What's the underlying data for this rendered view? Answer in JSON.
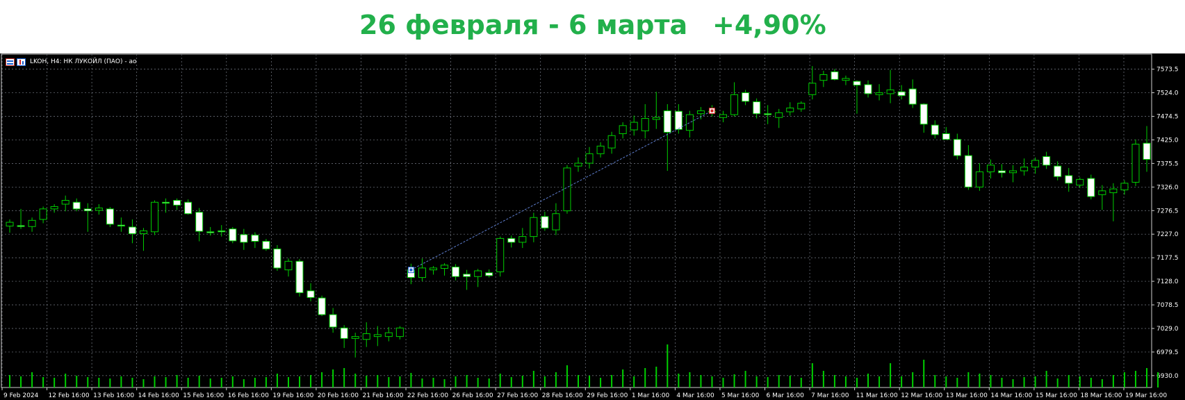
{
  "banner": {
    "period": "26 февраля - 6 марта",
    "change": "+4,90%"
  },
  "header": {
    "symbol_text": "LKOH, H4:  НК ЛУКОЙЛ (ПАО) - ao"
  },
  "colors": {
    "banner_text": "#22b04b",
    "background": "#000000",
    "grid": "#7a7f8a",
    "bull_stroke": "#00d000",
    "bull_fill": "#000000",
    "bear_fill": "#ffffff",
    "volume": "#00d000",
    "trendline": "#5f7fd0"
  },
  "chart_data": {
    "type": "candlestick",
    "title": "",
    "xlabel": "",
    "ylabel": "",
    "grid": true,
    "ylim": [
      6905,
      7605
    ],
    "y_ticks": [
      "7573.5",
      "7524.0",
      "7474.5",
      "7425.0",
      "7375.5",
      "7326.0",
      "7276.5",
      "7227.0",
      "7177.5",
      "7128.0",
      "7078.5",
      "7029.0",
      "6979.5",
      "6930.0"
    ],
    "x_ticks": [
      "9 Feb 2024",
      "12 Feb 16:00",
      "13 Feb 16:00",
      "14 Feb 16:00",
      "15 Feb 16:00",
      "16 Feb 16:00",
      "19 Feb 16:00",
      "20 Feb 16:00",
      "21 Feb 16:00",
      "22 Feb 16:00",
      "26 Feb 16:00",
      "27 Feb 16:00",
      "28 Feb 16:00",
      "29 Feb 16:00",
      "1 Mar 16:00",
      "4 Mar 16:00",
      "5 Mar 16:00",
      "6 Mar 16:00",
      "7 Mar 16:00",
      "11 Mar 16:00",
      "12 Mar 16:00",
      "13 Mar 16:00",
      "14 Mar 16:00",
      "15 Mar 16:00",
      "18 Mar 16:00",
      "19 Mar 16:00"
    ],
    "candles": [
      {
        "o": 7244,
        "h": 7258,
        "l": 7230,
        "c": 7252
      },
      {
        "o": 7245,
        "h": 7280,
        "l": 7238,
        "c": 7243
      },
      {
        "o": 7243,
        "h": 7262,
        "l": 7232,
        "c": 7256
      },
      {
        "o": 7258,
        "h": 7285,
        "l": 7250,
        "c": 7280
      },
      {
        "o": 7280,
        "h": 7290,
        "l": 7272,
        "c": 7285
      },
      {
        "o": 7290,
        "h": 7308,
        "l": 7275,
        "c": 7298
      },
      {
        "o": 7294,
        "h": 7302,
        "l": 7275,
        "c": 7280
      },
      {
        "o": 7280,
        "h": 7292,
        "l": 7232,
        "c": 7276
      },
      {
        "o": 7277,
        "h": 7290,
        "l": 7268,
        "c": 7282
      },
      {
        "o": 7280,
        "h": 7284,
        "l": 7242,
        "c": 7248
      },
      {
        "o": 7246,
        "h": 7262,
        "l": 7232,
        "c": 7244
      },
      {
        "o": 7242,
        "h": 7258,
        "l": 7208,
        "c": 7228
      },
      {
        "o": 7228,
        "h": 7240,
        "l": 7192,
        "c": 7234
      },
      {
        "o": 7232,
        "h": 7298,
        "l": 7225,
        "c": 7294
      },
      {
        "o": 7294,
        "h": 7302,
        "l": 7272,
        "c": 7292
      },
      {
        "o": 7298,
        "h": 7302,
        "l": 7278,
        "c": 7288
      },
      {
        "o": 7294,
        "h": 7300,
        "l": 7268,
        "c": 7270
      },
      {
        "o": 7273,
        "h": 7282,
        "l": 7212,
        "c": 7233
      },
      {
        "o": 7232,
        "h": 7242,
        "l": 7224,
        "c": 7230
      },
      {
        "o": 7234,
        "h": 7246,
        "l": 7222,
        "c": 7232
      },
      {
        "o": 7238,
        "h": 7242,
        "l": 7208,
        "c": 7213
      },
      {
        "o": 7226,
        "h": 7238,
        "l": 7194,
        "c": 7210
      },
      {
        "o": 7225,
        "h": 7231,
        "l": 7198,
        "c": 7212
      },
      {
        "o": 7212,
        "h": 7217,
        "l": 7192,
        "c": 7196
      },
      {
        "o": 7196,
        "h": 7204,
        "l": 7150,
        "c": 7156
      },
      {
        "o": 7152,
        "h": 7176,
        "l": 7138,
        "c": 7170
      },
      {
        "o": 7170,
        "h": 7175,
        "l": 7096,
        "c": 7104
      },
      {
        "o": 7108,
        "h": 7124,
        "l": 7086,
        "c": 7094
      },
      {
        "o": 7093,
        "h": 7098,
        "l": 7055,
        "c": 7058
      },
      {
        "o": 7058,
        "h": 7072,
        "l": 7020,
        "c": 7032
      },
      {
        "o": 7030,
        "h": 7036,
        "l": 6988,
        "c": 7008
      },
      {
        "o": 7008,
        "h": 7020,
        "l": 6968,
        "c": 7012
      },
      {
        "o": 7006,
        "h": 7042,
        "l": 6990,
        "c": 7018
      },
      {
        "o": 7012,
        "h": 7034,
        "l": 6992,
        "c": 7016
      },
      {
        "o": 7012,
        "h": 7032,
        "l": 7002,
        "c": 7020
      },
      {
        "o": 7012,
        "h": 7034,
        "l": 7006,
        "c": 7030
      },
      {
        "o": 7152,
        "h": 7165,
        "l": 7122,
        "c": 7136
      },
      {
        "o": 7136,
        "h": 7176,
        "l": 7128,
        "c": 7156
      },
      {
        "o": 7152,
        "h": 7160,
        "l": 7142,
        "c": 7156
      },
      {
        "o": 7155,
        "h": 7166,
        "l": 7140,
        "c": 7162
      },
      {
        "o": 7158,
        "h": 7164,
        "l": 7130,
        "c": 7138
      },
      {
        "o": 7143,
        "h": 7152,
        "l": 7110,
        "c": 7138
      },
      {
        "o": 7138,
        "h": 7154,
        "l": 7116,
        "c": 7150
      },
      {
        "o": 7146,
        "h": 7153,
        "l": 7136,
        "c": 7140
      },
      {
        "o": 7148,
        "h": 7222,
        "l": 7138,
        "c": 7218
      },
      {
        "o": 7218,
        "h": 7224,
        "l": 7199,
        "c": 7210
      },
      {
        "o": 7210,
        "h": 7240,
        "l": 7198,
        "c": 7222
      },
      {
        "o": 7222,
        "h": 7272,
        "l": 7210,
        "c": 7262
      },
      {
        "o": 7264,
        "h": 7274,
        "l": 7234,
        "c": 7240
      },
      {
        "o": 7236,
        "h": 7292,
        "l": 7225,
        "c": 7270
      },
      {
        "o": 7276,
        "h": 7372,
        "l": 7270,
        "c": 7366
      },
      {
        "o": 7370,
        "h": 7388,
        "l": 7358,
        "c": 7376
      },
      {
        "o": 7376,
        "h": 7410,
        "l": 7365,
        "c": 7396
      },
      {
        "o": 7396,
        "h": 7420,
        "l": 7388,
        "c": 7412
      },
      {
        "o": 7408,
        "h": 7442,
        "l": 7396,
        "c": 7434
      },
      {
        "o": 7438,
        "h": 7462,
        "l": 7428,
        "c": 7455
      },
      {
        "o": 7446,
        "h": 7476,
        "l": 7434,
        "c": 7462
      },
      {
        "o": 7444,
        "h": 7500,
        "l": 7428,
        "c": 7470
      },
      {
        "o": 7468,
        "h": 7526,
        "l": 7448,
        "c": 7472
      },
      {
        "o": 7486,
        "h": 7500,
        "l": 7360,
        "c": 7441
      },
      {
        "o": 7485,
        "h": 7500,
        "l": 7438,
        "c": 7447
      },
      {
        "o": 7445,
        "h": 7486,
        "l": 7430,
        "c": 7478
      },
      {
        "o": 7480,
        "h": 7494,
        "l": 7468,
        "c": 7486
      },
      {
        "o": 7484,
        "h": 7498,
        "l": 7474,
        "c": 7485
      },
      {
        "o": 7472,
        "h": 7486,
        "l": 7462,
        "c": 7478
      },
      {
        "o": 7478,
        "h": 7546,
        "l": 7474,
        "c": 7520
      },
      {
        "o": 7524,
        "h": 7530,
        "l": 7498,
        "c": 7506
      },
      {
        "o": 7505,
        "h": 7512,
        "l": 7470,
        "c": 7480
      },
      {
        "o": 7480,
        "h": 7498,
        "l": 7458,
        "c": 7478
      },
      {
        "o": 7472,
        "h": 7490,
        "l": 7450,
        "c": 7482
      },
      {
        "o": 7484,
        "h": 7504,
        "l": 7476,
        "c": 7492
      },
      {
        "o": 7490,
        "h": 7506,
        "l": 7484,
        "c": 7502
      },
      {
        "o": 7520,
        "h": 7580,
        "l": 7510,
        "c": 7544
      },
      {
        "o": 7550,
        "h": 7570,
        "l": 7536,
        "c": 7562
      },
      {
        "o": 7568,
        "h": 7574,
        "l": 7550,
        "c": 7552
      },
      {
        "o": 7550,
        "h": 7560,
        "l": 7540,
        "c": 7554
      },
      {
        "o": 7548,
        "h": 7550,
        "l": 7480,
        "c": 7540
      },
      {
        "o": 7541,
        "h": 7550,
        "l": 7514,
        "c": 7522
      },
      {
        "o": 7520,
        "h": 7542,
        "l": 7508,
        "c": 7524
      },
      {
        "o": 7522,
        "h": 7572,
        "l": 7502,
        "c": 7530
      },
      {
        "o": 7526,
        "h": 7540,
        "l": 7510,
        "c": 7518
      },
      {
        "o": 7532,
        "h": 7552,
        "l": 7492,
        "c": 7500
      },
      {
        "o": 7500,
        "h": 7502,
        "l": 7440,
        "c": 7458
      },
      {
        "o": 7456,
        "h": 7466,
        "l": 7428,
        "c": 7436
      },
      {
        "o": 7438,
        "h": 7452,
        "l": 7426,
        "c": 7426
      },
      {
        "o": 7426,
        "h": 7438,
        "l": 7384,
        "c": 7392
      },
      {
        "o": 7392,
        "h": 7414,
        "l": 7320,
        "c": 7326
      },
      {
        "o": 7326,
        "h": 7376,
        "l": 7318,
        "c": 7358
      },
      {
        "o": 7358,
        "h": 7384,
        "l": 7344,
        "c": 7372
      },
      {
        "o": 7360,
        "h": 7374,
        "l": 7346,
        "c": 7356
      },
      {
        "o": 7356,
        "h": 7372,
        "l": 7336,
        "c": 7360
      },
      {
        "o": 7360,
        "h": 7386,
        "l": 7350,
        "c": 7368
      },
      {
        "o": 7368,
        "h": 7388,
        "l": 7354,
        "c": 7382
      },
      {
        "o": 7390,
        "h": 7400,
        "l": 7364,
        "c": 7372
      },
      {
        "o": 7370,
        "h": 7380,
        "l": 7340,
        "c": 7348
      },
      {
        "o": 7350,
        "h": 7366,
        "l": 7316,
        "c": 7334
      },
      {
        "o": 7330,
        "h": 7346,
        "l": 7324,
        "c": 7342
      },
      {
        "o": 7344,
        "h": 7352,
        "l": 7300,
        "c": 7306
      },
      {
        "o": 7310,
        "h": 7330,
        "l": 7278,
        "c": 7318
      },
      {
        "o": 7314,
        "h": 7334,
        "l": 7254,
        "c": 7322
      },
      {
        "o": 7320,
        "h": 7340,
        "l": 7310,
        "c": 7334
      },
      {
        "o": 7336,
        "h": 7426,
        "l": 7328,
        "c": 7416
      },
      {
        "o": 7418,
        "h": 7454,
        "l": 7358,
        "c": 7384
      }
    ],
    "volumes": [
      18,
      16,
      22,
      15,
      14,
      20,
      17,
      15,
      14,
      13,
      16,
      14,
      12,
      16,
      15,
      18,
      14,
      17,
      13,
      14,
      16,
      12,
      14,
      15,
      20,
      15,
      16,
      18,
      22,
      26,
      28,
      20,
      17,
      18,
      15,
      16,
      21,
      13,
      14,
      12,
      16,
      18,
      14,
      13,
      20,
      15,
      17,
      24,
      16,
      22,
      32,
      18,
      17,
      14,
      18,
      26,
      16,
      28,
      30,
      62,
      20,
      22,
      18,
      16,
      14,
      19,
      24,
      16,
      15,
      18,
      17,
      14,
      35,
      24,
      18,
      16,
      14,
      20,
      16,
      35,
      16,
      22,
      40,
      18,
      16,
      14,
      22,
      20,
      18,
      14,
      12,
      15,
      16,
      24,
      13,
      18,
      16,
      14,
      12,
      18,
      22,
      24,
      28,
      22
    ],
    "trendline": {
      "from_index": 36,
      "from_price": 7152,
      "to_index": 63,
      "to_price": 7486
    }
  }
}
